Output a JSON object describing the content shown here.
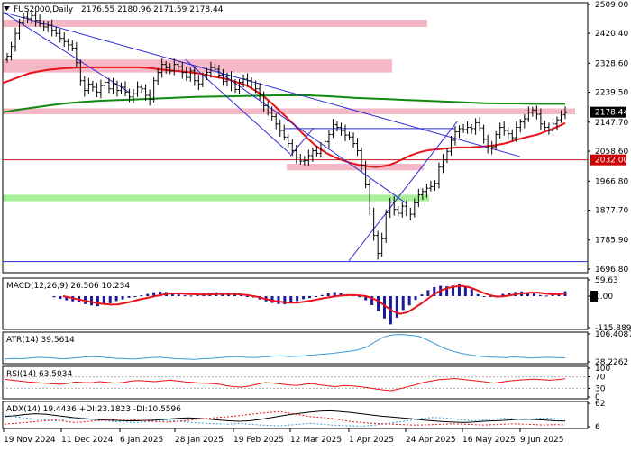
{
  "header": {
    "arrow_icon": "down-triangle-icon",
    "symbol_timeframe": "FUS2000,Daily",
    "ohlc": "2176.55 2180.96 2171.59 2178.44"
  },
  "colors": {
    "candle": "#000000",
    "ma_fast": "#e8141a",
    "ma_slow": "#0f8a0f",
    "trendline": "#2a2ad6",
    "hline": "#c21a1a",
    "resistance_zone": "#f6b8c6",
    "support_zone": "#a9ef9a",
    "macd_hist": "#1a1aa0",
    "macd_signal": "#e8141a",
    "atr": "#3a9bd6",
    "rsi": "#e8141a",
    "adx_main": "#000000",
    "adx_dip": "#3a9bd6",
    "adx_dim": "#e8141a",
    "price_tag_bg": "#000000",
    "hline_tag_bg": "#cc0000",
    "zero_tag_bg": "#000000"
  },
  "chart_data": [
    {
      "type": "candlestick",
      "pane": "price",
      "symbol": "FUS2000",
      "timeframe": "Daily",
      "ohlc_last": {
        "open": 2176.55,
        "high": 2180.96,
        "low": 2171.59,
        "close": 2178.44
      },
      "ylim": [
        1696.8,
        2509.0
      ],
      "y_ticks": [
        "2509.00",
        "2420.40",
        "2328.60",
        "2239.50",
        "2147.70",
        "2058.60",
        "1966.80",
        "1877.70",
        "1785.90",
        "1696.80"
      ],
      "x_ticks": [
        "19 Nov 2024",
        "11 Dec 2024",
        "6 Jan 2025",
        "28 Jan 2025",
        "19 Feb 2025",
        "12 Mar 2025",
        "1 Apr 2025",
        "24 Apr 2025",
        "16 May 2025",
        "9 Jun 2025"
      ],
      "current_price_label": "2178.44",
      "horizontal_line": {
        "value": 2032.0,
        "label": "2032.00"
      },
      "lower_support_line": 1720,
      "zones": [
        {
          "kind": "resistance",
          "from": 2440,
          "to": 2462
        },
        {
          "kind": "resistance",
          "from": 2300,
          "to": 2340
        },
        {
          "kind": "resistance",
          "from": 2172,
          "to": 2190
        },
        {
          "kind": "resistance",
          "from": 2000,
          "to": 2020
        },
        {
          "kind": "support",
          "from": 1905,
          "to": 1925
        }
      ],
      "close": [
        2350,
        2380,
        2420,
        2455,
        2470,
        2465,
        2475,
        2460,
        2450,
        2440,
        2445,
        2430,
        2420,
        2405,
        2395,
        2385,
        2375,
        2330,
        2275,
        2245,
        2265,
        2255,
        2240,
        2260,
        2270,
        2250,
        2265,
        2245,
        2255,
        2240,
        2225,
        2235,
        2255,
        2250,
        2230,
        2218,
        2275,
        2300,
        2325,
        2315,
        2305,
        2325,
        2318,
        2300,
        2285,
        2305,
        2275,
        2265,
        2290,
        2300,
        2315,
        2310,
        2292,
        2273,
        2290,
        2262,
        2248,
        2270,
        2280,
        2275,
        2262,
        2250,
        2232,
        2198,
        2178,
        2165,
        2142,
        2122,
        2102,
        2082,
        2060,
        2040,
        2028,
        2030,
        2045,
        2060,
        2052,
        2068,
        2088,
        2110,
        2140,
        2132,
        2122,
        2108,
        2102,
        2082,
        2060,
        2015,
        1955,
        1875,
        1800,
        1745,
        1790,
        1870,
        1902,
        1880,
        1868,
        1890,
        1875,
        1865,
        1900,
        1925,
        1935,
        1945,
        1950,
        1960,
        2010,
        2032,
        2058,
        2092,
        2118,
        2128,
        2125,
        2132,
        2128,
        2146,
        2130,
        2095,
        2068,
        2072,
        2110,
        2132,
        2122,
        2112,
        2100,
        2132,
        2148,
        2158,
        2178,
        2185,
        2172,
        2142,
        2132,
        2122,
        2142,
        2155,
        2170,
        2178
      ],
      "ma_fast": [
        2268,
        2275,
        2283,
        2291,
        2298,
        2302,
        2306,
        2309,
        2311,
        2313,
        2314,
        2315,
        2316,
        2316,
        2316,
        2316,
        2316,
        2316,
        2316,
        2316,
        2316,
        2315,
        2313,
        2310,
        2308,
        2306,
        2304,
        2302,
        2300,
        2297,
        2293,
        2288,
        2284,
        2280,
        2274,
        2267,
        2260,
        2248,
        2235,
        2218,
        2200,
        2180,
        2160,
        2140,
        2118,
        2098,
        2079,
        2063,
        2050,
        2040,
        2032,
        2025,
        2019,
        2015,
        2012,
        2010,
        2012,
        2016,
        2024,
        2034,
        2044,
        2052,
        2058,
        2062,
        2064,
        2066,
        2068,
        2070,
        2070,
        2070,
        2072,
        2073,
        2075,
        2078,
        2082,
        2088,
        2095,
        2100,
        2105,
        2110,
        2118,
        2126,
        2135,
        2145
      ],
      "ma_slow": [
        2178,
        2186,
        2193,
        2200,
        2206,
        2210,
        2213,
        2215,
        2217,
        2219,
        2221,
        2223,
        2225,
        2226,
        2227,
        2228,
        2229,
        2230,
        2230,
        2230,
        2228,
        2225,
        2222,
        2220,
        2218,
        2216,
        2214,
        2212,
        2210,
        2208,
        2206,
        2205,
        2205,
        2204,
        2204,
        2204
      ],
      "trendlines": [
        {
          "from": {
            "x": "19 Nov 2024",
            "y": 2485
          },
          "to": {
            "x": "9 Jun 2025",
            "y": 2042
          }
        },
        {
          "from": {
            "x": "19 Nov 2024",
            "y": 2485
          },
          "to": {
            "x": "10 Jan 2025",
            "y": 2238
          }
        },
        {
          "from": {
            "x": "1 Feb 2025",
            "y": 2340
          },
          "to": {
            "x": "12 Mar 2025",
            "y": 2050
          }
        },
        {
          "from": {
            "x": "13 Feb 2025",
            "y": 2305
          },
          "to": {
            "x": "24 Apr 2025",
            "y": 1900
          }
        },
        {
          "from": {
            "x": "1 Apr 2025",
            "y": 1722
          },
          "to": {
            "x": "14 May 2025",
            "y": 2150
          }
        },
        {
          "from": {
            "x": "12 Mar 2025",
            "y": 2044
          },
          "to": {
            "x": "20 Mar 2025",
            "y": 2130
          }
        },
        {
          "from": {
            "x": "10 Mar 2025",
            "y": 2128
          },
          "to": {
            "x": "13 May 2025",
            "y": 2128
          }
        }
      ]
    },
    {
      "type": "histogram",
      "pane": "macd",
      "label": "MACD(12,26,9) 26.506 10.234",
      "y_ticks": [
        "59.63",
        "0.00",
        "-115.889"
      ],
      "ylim": [
        -115.889,
        59.63
      ],
      "histogram": [
        -4,
        -10,
        -15,
        -19,
        -23,
        -29,
        -34,
        -37,
        -31,
        -26,
        -18,
        -12,
        -6,
        -2,
        3,
        8,
        14,
        17,
        15,
        10,
        6,
        3,
        2,
        8,
        10,
        12,
        14,
        10,
        8,
        6,
        4,
        0,
        -5,
        -12,
        -19,
        -25,
        -29,
        -30,
        -25,
        -18,
        -11,
        -7,
        -2,
        4,
        10,
        15,
        11,
        7,
        3,
        -4,
        -15,
        -33,
        -55,
        -82,
        -104,
        -79,
        -51,
        -34,
        -14,
        6,
        22,
        33,
        38,
        36,
        39,
        43,
        38,
        25,
        7,
        -1,
        -3,
        2,
        8,
        12,
        15,
        17,
        14,
        12,
        4,
        2,
        7,
        13,
        18
      ],
      "signal": [
        0,
        -5,
        -11,
        -16,
        -21,
        -26,
        -29,
        -31,
        -30,
        -25,
        -20,
        -13,
        -8,
        -2,
        3,
        8,
        10,
        10,
        8,
        7,
        6,
        6,
        7,
        8,
        8,
        8,
        6,
        3,
        -1,
        -8,
        -14,
        -19,
        -22,
        -24,
        -24,
        -21,
        -17,
        -12,
        -7,
        -3,
        1,
        3,
        4,
        3,
        0,
        -8,
        -21,
        -39,
        -56,
        -65,
        -60,
        -45,
        -28,
        -10,
        8,
        22,
        30,
        35,
        37,
        33,
        24,
        13,
        4,
        -2,
        -1,
        3,
        8,
        11,
        13,
        13,
        10,
        7,
        7,
        9
      ]
    },
    {
      "type": "line",
      "pane": "atr",
      "label": "ATR(14) 39.5614",
      "y_ticks": [
        "106.4087",
        "28.2262"
      ],
      "ylim": [
        28.2262,
        106.4087
      ],
      "values": [
        36,
        38,
        37,
        39,
        41,
        40,
        38,
        37,
        39,
        41,
        43,
        42,
        40,
        38,
        37,
        36,
        38,
        40,
        41,
        39,
        37,
        36,
        35,
        37,
        38,
        40,
        42,
        43,
        41,
        40,
        42,
        44,
        45,
        43,
        44,
        46,
        48,
        50,
        52,
        55,
        58,
        62,
        70,
        85,
        98,
        104,
        105,
        103,
        100,
        90,
        78,
        66,
        58,
        52,
        48,
        44,
        42,
        41,
        40,
        42,
        41,
        39,
        40,
        41,
        40,
        39.5614
      ]
    },
    {
      "type": "line",
      "pane": "rsi",
      "label": "RSI(14) 63.5034",
      "y_ticks": [
        "100",
        "70",
        "30",
        "0"
      ],
      "ylim": [
        0,
        100
      ],
      "levels": [
        70,
        30
      ],
      "values": [
        62,
        58,
        55,
        52,
        50,
        48,
        46,
        44,
        47,
        52,
        50,
        49,
        53,
        51,
        48,
        50,
        55,
        57,
        55,
        53,
        56,
        58,
        55,
        52,
        50,
        48,
        47,
        45,
        40,
        36,
        34,
        38,
        44,
        50,
        48,
        45,
        42,
        40,
        44,
        46,
        42,
        38,
        36,
        40,
        38,
        36,
        32,
        28,
        24,
        22,
        28,
        35,
        42,
        50,
        55,
        60,
        62,
        64,
        61,
        58,
        55,
        52,
        48,
        52,
        56,
        58,
        60,
        62,
        60,
        58,
        60,
        63.5034
      ]
    },
    {
      "type": "line",
      "pane": "adx",
      "label": "ADX(14) 19.4436 +DI:23.1823 -DI:10.5596",
      "y_ticks": [
        "62",
        "6"
      ],
      "ylim": [
        6,
        62
      ],
      "series": [
        {
          "name": "ADX",
          "values": [
            30,
            32,
            35,
            37,
            36,
            33,
            30,
            27,
            25,
            23,
            22,
            21,
            20,
            20,
            21,
            22,
            24,
            26,
            27,
            26,
            24,
            22,
            20,
            19,
            20,
            23,
            27,
            31,
            35,
            38,
            41,
            43,
            44,
            42,
            40,
            37,
            34,
            31,
            29,
            27,
            25,
            22,
            20,
            18,
            17,
            16,
            17,
            19,
            20,
            21,
            23,
            24,
            23,
            22,
            20,
            19.4436
          ]
        },
        {
          "name": "+DI",
          "values": [
            34,
            30,
            27,
            24,
            22,
            20,
            24,
            28,
            26,
            22,
            20,
            18,
            17,
            16,
            18,
            20,
            22,
            19,
            17,
            15,
            14,
            13,
            12,
            14,
            12,
            10,
            9,
            8,
            10,
            12,
            14,
            12,
            10,
            9,
            8,
            7,
            9,
            12,
            15,
            18,
            22,
            26,
            28,
            27,
            25,
            22,
            20,
            22,
            24,
            26,
            24,
            22,
            25,
            27,
            25,
            23.1823
          ]
        },
        {
          "name": "-DI",
          "values": [
            12,
            14,
            16,
            18,
            20,
            22,
            19,
            16,
            18,
            20,
            22,
            24,
            23,
            22,
            20,
            18,
            17,
            19,
            21,
            24,
            26,
            28,
            30,
            32,
            35,
            38,
            40,
            42,
            38,
            34,
            30,
            28,
            26,
            22,
            18,
            16,
            14,
            13,
            12,
            11,
            10,
            10,
            11,
            12,
            13,
            12,
            11,
            10,
            11,
            12,
            13,
            12,
            11,
            10,
            11,
            10.5596
          ]
        }
      ]
    }
  ]
}
